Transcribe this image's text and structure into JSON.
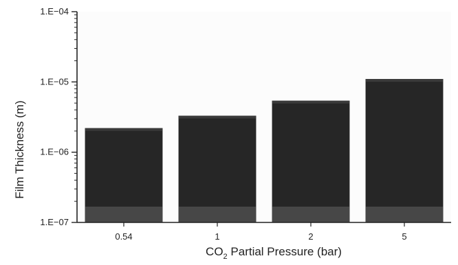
{
  "chart_data": {
    "type": "bar",
    "title": "",
    "xlabel": "CO₂ Partial Pressure (bar)",
    "xlabel_parts": [
      "CO",
      "2",
      " Partial Pressure (bar)"
    ],
    "ylabel": "Film Thickness (m)",
    "y_scale": "log",
    "ylim": [
      1e-07,
      0.0001
    ],
    "y_ticks": [
      {
        "value": 1e-07,
        "label": "1.E−07"
      },
      {
        "value": 1e-06,
        "label": "1.E−06"
      },
      {
        "value": 1e-05,
        "label": "1.E−05"
      },
      {
        "value": 0.0001,
        "label": "1.E−04"
      }
    ],
    "categories": [
      "0.54",
      "1",
      "2",
      "5"
    ],
    "values": [
      2.2e-06,
      3.3e-06,
      5.4e-06,
      1.1e-05
    ],
    "grid": false,
    "legend": "none"
  },
  "colors": {
    "bar": "#262626",
    "bar_base": "#474747",
    "axis": "#222222",
    "plot_background": "#fcfcfc"
  }
}
